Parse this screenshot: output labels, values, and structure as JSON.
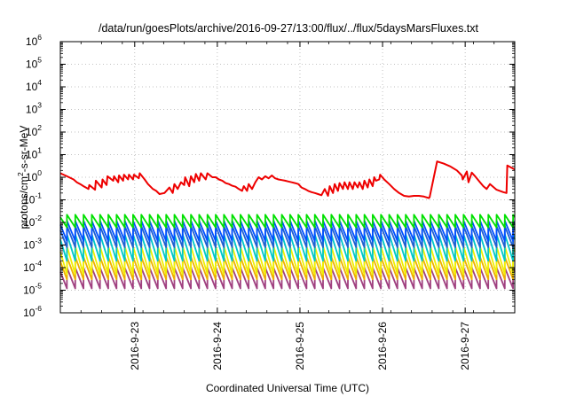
{
  "chart_data": {
    "type": "line",
    "title": "/data/run/goesPlots/archive/2016-09-27/13:00/flux/../flux/5daysMarsFluxes.txt",
    "xlabel": "Coordinated Universal Time (UTC)",
    "ylabel_parts": [
      "protons/cm",
      "2",
      "-s-sr-MeV"
    ],
    "y_scale": "log",
    "ylim_exp": [
      -6,
      6
    ],
    "y_tick_base": "10",
    "y_tick_exponents": [
      "-6",
      "-5",
      "-4",
      "-3",
      "-2",
      "-1",
      "0",
      "1",
      "2",
      "3",
      "4",
      "5",
      "6"
    ],
    "x_tick_labels": [
      "2016-9-23",
      "2016-9-24",
      "2016-9-25",
      "2016-9-26",
      "2016-9-27"
    ],
    "xlim_days": [
      22.1,
      27.6
    ],
    "grid": true,
    "series": [
      {
        "color": "#ee0000",
        "sawtooth": false,
        "x_days": [
          22.1,
          22.18,
          22.26,
          22.3,
          22.34,
          22.38,
          22.44,
          22.45,
          22.52,
          22.53,
          22.6,
          22.61,
          22.66,
          22.67,
          22.74,
          22.75,
          22.8,
          22.81,
          22.86,
          22.87,
          22.92,
          22.93,
          22.98,
          22.99,
          23.05,
          23.06,
          23.12,
          23.16,
          23.22,
          23.26,
          23.3,
          23.36,
          23.42,
          23.46,
          23.48,
          23.52,
          23.56,
          23.6,
          23.61,
          23.66,
          23.68,
          23.72,
          23.74,
          23.78,
          23.8,
          23.86,
          23.88,
          23.94,
          23.98,
          24.02,
          24.06,
          24.1,
          24.14,
          24.18,
          24.22,
          24.26,
          24.3,
          24.32,
          24.36,
          24.38,
          24.42,
          24.46,
          24.5,
          24.54,
          24.58,
          24.62,
          24.66,
          24.7,
          24.74,
          24.78,
          24.82,
          24.86,
          24.9,
          24.94,
          24.98,
          25.02,
          25.06,
          25.1,
          25.14,
          25.18,
          25.22,
          25.26,
          25.3,
          25.34,
          25.36,
          25.4,
          25.42,
          25.46,
          25.48,
          25.52,
          25.54,
          25.58,
          25.6,
          25.64,
          25.66,
          25.7,
          25.72,
          25.76,
          25.78,
          25.82,
          25.84,
          25.88,
          25.9,
          25.92,
          25.96,
          25.97,
          26.02,
          26.08,
          26.14,
          26.2,
          26.26,
          26.32,
          26.38,
          26.44,
          26.5,
          26.56,
          26.57,
          26.66,
          26.74,
          26.82,
          26.9,
          26.96,
          26.97,
          27.02,
          27.04,
          27.08,
          27.12,
          27.18,
          27.22,
          27.26,
          27.3,
          27.38,
          27.46,
          27.5,
          27.51,
          27.6
        ],
        "y": [
          1.5,
          1.1,
          0.8,
          0.6,
          0.5,
          0.4,
          0.3,
          0.45,
          0.28,
          0.7,
          0.35,
          0.8,
          0.45,
          1.1,
          0.7,
          1.1,
          0.6,
          1.2,
          0.7,
          1.3,
          0.8,
          1.3,
          0.8,
          1.3,
          0.9,
          1.5,
          0.8,
          0.5,
          0.3,
          0.25,
          0.18,
          0.2,
          0.35,
          0.2,
          0.5,
          0.3,
          0.6,
          0.45,
          1.0,
          0.4,
          1.1,
          0.6,
          1.4,
          0.7,
          1.5,
          0.8,
          1.5,
          1.0,
          1.0,
          0.8,
          0.7,
          0.55,
          0.5,
          0.42,
          0.38,
          0.3,
          0.25,
          0.4,
          0.25,
          0.5,
          0.3,
          0.6,
          1.0,
          0.8,
          1.1,
          0.9,
          1.2,
          0.9,
          0.8,
          0.75,
          0.7,
          0.65,
          0.6,
          0.55,
          0.5,
          0.35,
          0.3,
          0.25,
          0.22,
          0.2,
          0.18,
          0.16,
          0.3,
          0.15,
          0.4,
          0.2,
          0.5,
          0.25,
          0.55,
          0.3,
          0.6,
          0.3,
          0.6,
          0.3,
          0.6,
          0.35,
          0.6,
          0.3,
          0.7,
          0.35,
          0.8,
          0.4,
          1.0,
          0.7,
          0.8,
          1.3,
          0.8,
          0.5,
          0.3,
          0.2,
          0.15,
          0.14,
          0.15,
          0.15,
          0.14,
          0.12,
          0.13,
          5.0,
          4.0,
          3.0,
          2.0,
          1.2,
          0.8,
          1.8,
          0.6,
          1.6,
          1.1,
          0.6,
          0.4,
          0.3,
          0.5,
          0.28,
          0.22,
          0.2,
          3.3,
          2.2
        ]
      },
      {
        "color": "#00e000",
        "sawtooth": true,
        "period_days": 0.1,
        "phase_days": 0.02,
        "peak": 0.022,
        "trough": 0.006
      },
      {
        "color": "#0050ff",
        "sawtooth": true,
        "period_days": 0.1,
        "phase_days": 0.02,
        "peak": 0.012,
        "trough": 0.0015
      },
      {
        "color": "#2060d0",
        "sawtooth": true,
        "period_days": 0.1,
        "phase_days": 0.02,
        "peak": 0.007,
        "trough": 0.0008
      },
      {
        "color": "#00c8c8",
        "sawtooth": true,
        "period_days": 0.1,
        "phase_days": 0.02,
        "peak": 0.003,
        "trough": 0.0002
      },
      {
        "color": "#f0f000",
        "sawtooth": true,
        "period_days": 0.1,
        "phase_days": 0.02,
        "peak": 0.0009,
        "trough": 5e-05
      },
      {
        "color": "#f0b000",
        "sawtooth": true,
        "period_days": 0.1,
        "phase_days": 0.02,
        "peak": 0.0003,
        "trough": 3e-05
      },
      {
        "color": "#a04080",
        "sawtooth": true,
        "period_days": 0.1,
        "phase_days": 0.02,
        "peak": 0.0001,
        "trough": 1.2e-05
      }
    ]
  }
}
